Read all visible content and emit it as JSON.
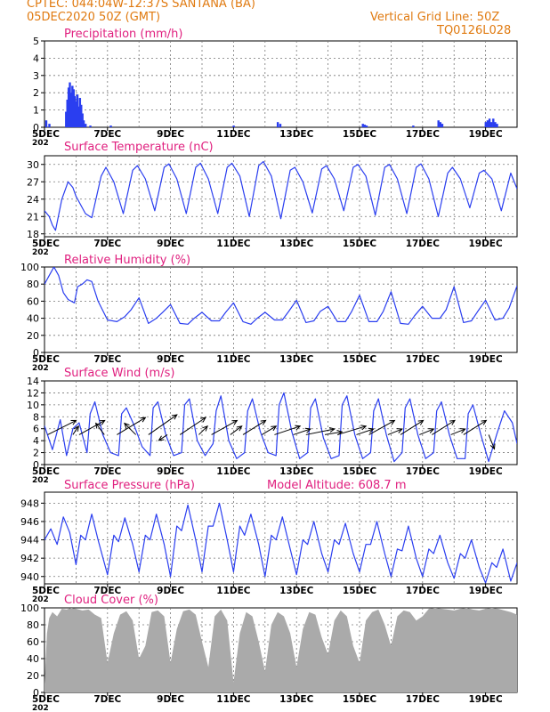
{
  "header": {
    "line1": "CPTEC:   044:04W-12:37S   SANTANA (BA)",
    "line2": "05DEC2020 50Z (GMT)",
    "grid_note": "Vertical Grid Line: 50Z",
    "code": "TQ0126L028"
  },
  "colors": {
    "header": "#e07a10",
    "panel_title": "#e0207f",
    "series": "#2a3ef0",
    "cloud": "#aaaaaa",
    "grid": "#777777"
  },
  "x_axis": {
    "day_labels": [
      "5DEC",
      "7DEC",
      "9DEC",
      "11DEC",
      "13DEC",
      "15DEC",
      "17DEC",
      "19DEC"
    ],
    "day_positions": [
      0,
      2,
      4,
      6,
      8,
      10,
      12,
      14
    ],
    "range_days": [
      0,
      15
    ],
    "truncated_year_label": "202"
  },
  "chart_data": [
    {
      "name": "precipitation",
      "type": "bar",
      "title": "Precipitation (mm/h)",
      "ylim": [
        0,
        5
      ],
      "yticks": [
        0,
        1,
        2,
        3,
        4,
        5
      ],
      "bars": [
        {
          "d": 0.05,
          "v": 0.4
        },
        {
          "d": 0.15,
          "v": 0.2
        },
        {
          "d": 0.68,
          "v": 0.9
        },
        {
          "d": 0.72,
          "v": 1.6
        },
        {
          "d": 0.76,
          "v": 2.3
        },
        {
          "d": 0.8,
          "v": 2.6
        },
        {
          "d": 0.84,
          "v": 2.0
        },
        {
          "d": 0.88,
          "v": 2.4
        },
        {
          "d": 0.92,
          "v": 2.2
        },
        {
          "d": 0.96,
          "v": 1.8
        },
        {
          "d": 1.0,
          "v": 1.5
        },
        {
          "d": 1.04,
          "v": 1.9
        },
        {
          "d": 1.08,
          "v": 1.2
        },
        {
          "d": 1.12,
          "v": 1.7
        },
        {
          "d": 1.16,
          "v": 1.3
        },
        {
          "d": 1.2,
          "v": 0.8
        },
        {
          "d": 1.24,
          "v": 0.4
        },
        {
          "d": 1.3,
          "v": 0.2
        },
        {
          "d": 1.45,
          "v": 0.1
        },
        {
          "d": 2.1,
          "v": 0.1
        },
        {
          "d": 6.0,
          "v": 0.1
        },
        {
          "d": 7.4,
          "v": 0.3
        },
        {
          "d": 7.48,
          "v": 0.2
        },
        {
          "d": 10.1,
          "v": 0.2
        },
        {
          "d": 10.16,
          "v": 0.15
        },
        {
          "d": 10.22,
          "v": 0.1
        },
        {
          "d": 11.7,
          "v": 0.1
        },
        {
          "d": 12.5,
          "v": 0.4
        },
        {
          "d": 12.56,
          "v": 0.3
        },
        {
          "d": 12.62,
          "v": 0.2
        },
        {
          "d": 14.0,
          "v": 0.3
        },
        {
          "d": 14.06,
          "v": 0.4
        },
        {
          "d": 14.12,
          "v": 0.5
        },
        {
          "d": 14.18,
          "v": 0.3
        },
        {
          "d": 14.24,
          "v": 0.5
        },
        {
          "d": 14.3,
          "v": 0.3
        },
        {
          "d": 14.36,
          "v": 0.2
        }
      ]
    },
    {
      "name": "temperature",
      "type": "line",
      "title": "Surface Temperature (nC)",
      "ylim": [
        17.5,
        31.5
      ],
      "yticks": [
        18,
        21,
        24,
        27,
        30
      ],
      "series": {
        "x": [
          0,
          0.15,
          0.25,
          0.35,
          0.55,
          0.75,
          0.9,
          1.0,
          1.3,
          1.5,
          1.8,
          1.95,
          2.2,
          2.5,
          2.8,
          2.95,
          3.2,
          3.5,
          3.8,
          3.95,
          4.2,
          4.5,
          4.8,
          4.95,
          5.2,
          5.5,
          5.8,
          5.95,
          6.2,
          6.5,
          6.8,
          6.95,
          7.2,
          7.5,
          7.8,
          7.95,
          8.2,
          8.5,
          8.8,
          8.95,
          9.2,
          9.5,
          9.8,
          9.95,
          10.2,
          10.5,
          10.8,
          10.95,
          11.2,
          11.5,
          11.8,
          11.95,
          12.2,
          12.5,
          12.8,
          12.95,
          13.2,
          13.5,
          13.8,
          13.95,
          14.2,
          14.5,
          14.8,
          15.0
        ],
        "y": [
          22,
          21,
          19.5,
          18.6,
          24,
          27,
          26,
          24.5,
          21.5,
          20.8,
          28,
          29.5,
          27,
          21.5,
          29,
          29.8,
          27.5,
          22,
          29.5,
          30.1,
          27.5,
          21.5,
          29.5,
          30.2,
          27.5,
          21.5,
          29.5,
          30.2,
          28,
          21,
          29.8,
          30.5,
          28,
          20.6,
          29,
          29.5,
          27,
          21.6,
          29.2,
          29.8,
          27.5,
          22,
          29.5,
          30,
          28,
          21.2,
          29.5,
          30,
          27.5,
          21.5,
          29.5,
          30.1,
          27.5,
          21,
          28.5,
          29.5,
          27.5,
          22.5,
          28.5,
          29,
          27.5,
          22,
          28.5,
          25.8
        ]
      }
    },
    {
      "name": "humidity",
      "type": "line",
      "title": "Relative Humidity (%)",
      "ylim": [
        0,
        100
      ],
      "yticks": [
        0,
        20,
        40,
        60,
        80,
        100
      ],
      "series": {
        "x": [
          0,
          0.15,
          0.3,
          0.45,
          0.6,
          0.75,
          0.95,
          1.05,
          1.2,
          1.35,
          1.5,
          1.7,
          2.0,
          2.3,
          2.55,
          2.75,
          3.0,
          3.3,
          3.55,
          3.75,
          4.0,
          4.3,
          4.55,
          4.75,
          5.0,
          5.3,
          5.55,
          5.75,
          6.0,
          6.3,
          6.55,
          6.75,
          7.0,
          7.3,
          7.55,
          7.75,
          8.0,
          8.3,
          8.55,
          8.75,
          9.0,
          9.3,
          9.55,
          9.75,
          10.0,
          10.3,
          10.55,
          10.75,
          11.0,
          11.3,
          11.55,
          11.75,
          12.0,
          12.3,
          12.55,
          12.75,
          13.0,
          13.3,
          13.55,
          13.75,
          14.0,
          14.3,
          14.55,
          14.75,
          15.0
        ],
        "y": [
          80,
          90,
          100,
          90,
          70,
          62,
          58,
          77,
          80,
          85,
          83,
          60,
          38,
          36,
          42,
          50,
          64,
          34,
          40,
          47,
          56,
          34,
          33,
          40,
          47,
          37,
          37,
          47,
          58,
          36,
          33,
          40,
          47,
          38,
          38,
          48,
          61,
          35,
          37,
          48,
          54,
          36,
          36,
          48,
          67,
          36,
          36,
          48,
          71,
          34,
          33,
          43,
          54,
          40,
          40,
          50,
          77,
          35,
          37,
          48,
          61,
          38,
          40,
          52,
          78
        ]
      }
    },
    {
      "name": "wind",
      "type": "line",
      "title": "Surface Wind (m/s)",
      "ylim": [
        0,
        14
      ],
      "yticks": [
        0,
        2,
        4,
        6,
        8,
        10,
        12,
        14
      ],
      "series": {
        "x": [
          0,
          0.25,
          0.5,
          0.7,
          0.9,
          1.1,
          1.35,
          1.45,
          1.6,
          1.85,
          2.1,
          2.35,
          2.45,
          2.6,
          2.85,
          3.1,
          3.35,
          3.45,
          3.6,
          3.85,
          4.1,
          4.35,
          4.45,
          4.6,
          4.85,
          5.1,
          5.35,
          5.45,
          5.6,
          5.85,
          6.1,
          6.35,
          6.45,
          6.6,
          6.85,
          7.1,
          7.35,
          7.45,
          7.6,
          7.85,
          8.1,
          8.35,
          8.45,
          8.6,
          8.85,
          9.1,
          9.35,
          9.45,
          9.6,
          9.85,
          10.1,
          10.35,
          10.45,
          10.6,
          10.85,
          11.1,
          11.35,
          11.45,
          11.6,
          11.85,
          12.1,
          12.35,
          12.45,
          12.6,
          12.85,
          13.1,
          13.35,
          13.45,
          13.6,
          13.85,
          14.1,
          14.35,
          14.6,
          14.85,
          15.0
        ],
        "y": [
          6.5,
          2.5,
          7.5,
          1.5,
          6,
          7,
          2,
          8.5,
          10.5,
          5,
          2,
          1.5,
          8.5,
          9.5,
          6.5,
          3,
          1.5,
          9.5,
          10.5,
          5,
          1.5,
          2,
          10,
          11,
          4,
          1.5,
          3.5,
          9,
          11.5,
          4,
          1,
          2,
          9,
          11,
          5.5,
          2,
          1.5,
          10,
          12,
          5.5,
          1,
          2,
          9.5,
          11,
          4.5,
          1,
          1.5,
          10,
          11.5,
          5,
          1,
          2,
          9,
          11,
          5,
          0.5,
          2,
          9.5,
          11,
          5,
          1,
          2,
          9,
          10.5,
          5,
          1,
          1,
          8.5,
          10,
          5,
          0.5,
          5,
          9,
          7,
          3.5
        ]
      },
      "vectors": [
        {
          "d": 0.1,
          "u": 1.0,
          "v": 0.5
        },
        {
          "d": 0.9,
          "u": 0.2,
          "v": 0.3
        },
        {
          "d": 1.1,
          "u": 0.9,
          "v": 0.5
        },
        {
          "d": 1.9,
          "u": -0.3,
          "v": 0.4
        },
        {
          "d": 2.3,
          "u": 1.0,
          "v": 0.6
        },
        {
          "d": 2.9,
          "u": -0.4,
          "v": 0.4
        },
        {
          "d": 3.3,
          "u": 1.0,
          "v": 0.7
        },
        {
          "d": 3.9,
          "u": -0.3,
          "v": -0.2
        },
        {
          "d": 4.3,
          "u": 0.9,
          "v": 0.6
        },
        {
          "d": 4.9,
          "u": 0.3,
          "v": 0.3
        },
        {
          "d": 5.3,
          "u": 0.9,
          "v": 0.5
        },
        {
          "d": 5.9,
          "u": 0.4,
          "v": 0.3
        },
        {
          "d": 6.3,
          "u": 0.8,
          "v": 0.5
        },
        {
          "d": 6.9,
          "u": 0.5,
          "v": 0.3
        },
        {
          "d": 7.3,
          "u": 0.9,
          "v": 0.3
        },
        {
          "d": 7.9,
          "u": 0.6,
          "v": 0.2
        },
        {
          "d": 8.3,
          "u": 1.0,
          "v": 0.2
        },
        {
          "d": 8.9,
          "u": 0.6,
          "v": 0.1
        },
        {
          "d": 9.3,
          "u": 1.0,
          "v": 0.3
        },
        {
          "d": 9.9,
          "u": 0.6,
          "v": 0.2
        },
        {
          "d": 10.3,
          "u": 0.9,
          "v": 0.5
        },
        {
          "d": 10.9,
          "u": 0.5,
          "v": 0.2
        },
        {
          "d": 11.3,
          "u": 0.8,
          "v": 0.5
        },
        {
          "d": 11.9,
          "u": 0.5,
          "v": 0.2
        },
        {
          "d": 12.3,
          "u": 0.8,
          "v": 0.5
        },
        {
          "d": 12.9,
          "u": 0.5,
          "v": 0.2
        },
        {
          "d": 13.3,
          "u": 0.8,
          "v": 0.5
        },
        {
          "d": 14.1,
          "u": 0.2,
          "v": -0.5
        }
      ]
    },
    {
      "name": "pressure",
      "type": "line",
      "title": "Surface Pressure (hPa)",
      "extra_label": "Model Altitude: 608.7 m",
      "ylim": [
        939.2,
        949.2
      ],
      "yticks": [
        940,
        942,
        944,
        946,
        948
      ],
      "series": {
        "x": [
          0,
          0.2,
          0.4,
          0.6,
          0.8,
          1.0,
          1.15,
          1.3,
          1.5,
          1.7,
          2.0,
          2.2,
          2.35,
          2.55,
          2.8,
          3.0,
          3.2,
          3.35,
          3.55,
          3.8,
          4.0,
          4.2,
          4.35,
          4.55,
          4.8,
          5.0,
          5.2,
          5.35,
          5.55,
          5.8,
          6.0,
          6.2,
          6.35,
          6.55,
          6.8,
          7.0,
          7.2,
          7.35,
          7.55,
          7.8,
          8.0,
          8.2,
          8.35,
          8.55,
          8.8,
          9.0,
          9.2,
          9.35,
          9.55,
          9.8,
          10.0,
          10.2,
          10.35,
          10.55,
          10.8,
          11.0,
          11.2,
          11.35,
          11.55,
          11.8,
          12.0,
          12.2,
          12.35,
          12.55,
          12.8,
          13.0,
          13.2,
          13.35,
          13.55,
          13.8,
          14.0,
          14.2,
          14.35,
          14.55,
          14.8,
          15.0
        ],
        "y": [
          944,
          945.2,
          943.5,
          946.5,
          944.8,
          941.3,
          944.5,
          944,
          946.8,
          944,
          940.2,
          944.5,
          943.8,
          946.4,
          943.5,
          940.5,
          944.5,
          944,
          946.8,
          943.5,
          940,
          945.5,
          945,
          947.8,
          944,
          940.5,
          945.5,
          945.5,
          948,
          944,
          940.5,
          945.5,
          944.5,
          946.8,
          943.5,
          940,
          944.5,
          944,
          946.5,
          943,
          940.2,
          944,
          943.5,
          946,
          942.5,
          940.5,
          944,
          943.5,
          945.8,
          942.5,
          940.5,
          943.5,
          943.5,
          946,
          942.5,
          940,
          943,
          942.8,
          945.5,
          942,
          940,
          943,
          942.5,
          944.5,
          941.5,
          939.8,
          942.5,
          942,
          944,
          941,
          939.3,
          941.5,
          941,
          943,
          939.5,
          941.5
        ]
      }
    },
    {
      "name": "cloud",
      "type": "area",
      "title": "Cloud Cover (%)",
      "ylim": [
        0,
        100
      ],
      "yticks": [
        0,
        20,
        40,
        60,
        80,
        100
      ],
      "series": {
        "x": [
          0,
          0.08,
          0.15,
          0.25,
          0.4,
          0.55,
          0.7,
          0.85,
          1.0,
          1.2,
          1.4,
          1.6,
          1.8,
          2.0,
          2.2,
          2.4,
          2.6,
          2.8,
          3.0,
          3.2,
          3.4,
          3.6,
          3.8,
          4.0,
          4.2,
          4.4,
          4.6,
          4.8,
          5.0,
          5.2,
          5.4,
          5.6,
          5.8,
          6.0,
          6.2,
          6.4,
          6.6,
          6.8,
          7.0,
          7.2,
          7.4,
          7.6,
          7.8,
          8.0,
          8.2,
          8.4,
          8.6,
          8.8,
          9.0,
          9.2,
          9.4,
          9.6,
          9.8,
          10.0,
          10.2,
          10.4,
          10.6,
          10.8,
          11.0,
          11.2,
          11.4,
          11.6,
          11.8,
          12.0,
          12.2,
          12.4,
          12.6,
          12.8,
          13.0,
          13.2,
          13.4,
          13.6,
          13.8,
          14.0,
          14.2,
          14.4,
          14.6,
          14.8,
          15.0
        ],
        "y": [
          10,
          70,
          88,
          95,
          90,
          99,
          98,
          100,
          99,
          97,
          98,
          92,
          88,
          35,
          70,
          92,
          96,
          85,
          40,
          55,
          95,
          97,
          90,
          35,
          75,
          96,
          98,
          92,
          60,
          30,
          90,
          98,
          85,
          12,
          70,
          95,
          90,
          60,
          25,
          80,
          95,
          90,
          70,
          30,
          75,
          95,
          92,
          65,
          45,
          85,
          97,
          90,
          55,
          35,
          85,
          95,
          98,
          80,
          55,
          90,
          97,
          95,
          85,
          90,
          99,
          100,
          99,
          98,
          97,
          99,
          100,
          98,
          97,
          99,
          100,
          99,
          97,
          95,
          92
        ]
      }
    }
  ]
}
